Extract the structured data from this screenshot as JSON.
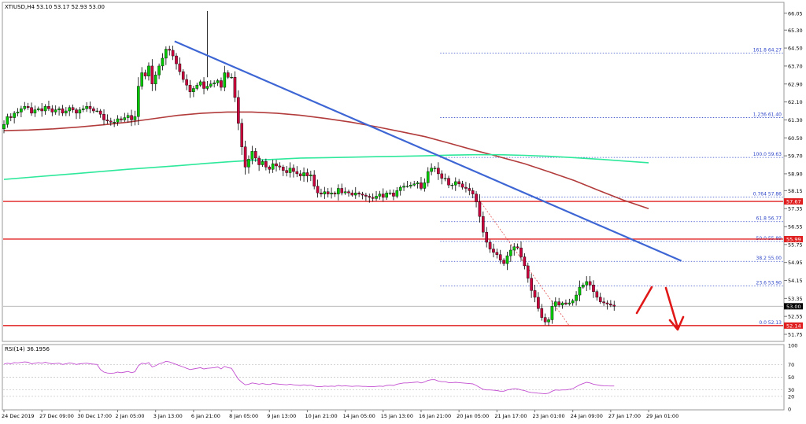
{
  "header": {
    "symbol_line": "XTIUSD,H4  53.10 53.17 52.93 53.00"
  },
  "rsi_panel": {
    "label": "RSI(14) 36.1956",
    "levels": [
      100,
      70,
      50,
      30,
      20,
      0
    ],
    "tick_labels": [
      "100",
      "70",
      "50",
      "30",
      "20",
      "0"
    ]
  },
  "colors": {
    "bull": "#00c800",
    "bear": "#c8003c",
    "trendline": "#3d66d4",
    "ma_slow": "#b23b3b",
    "ma_fast": "#2ee89b",
    "support": "#e02020",
    "fib": "#3048c8",
    "rsi": "#c24fd0",
    "arrow": "#e01818"
  },
  "chart_data": {
    "type": "candlestick",
    "y_ticks": [
      66.05,
      65.3,
      64.5,
      63.7,
      62.9,
      62.1,
      61.3,
      60.5,
      59.7,
      58.9,
      58.15,
      57.35,
      56.55,
      55.75,
      54.95,
      54.15,
      53.35,
      52.55,
      51.75
    ],
    "y_tick_labels": [
      "66.05",
      "65.30",
      "64.50",
      "63.70",
      "62.90",
      "62.10",
      "61.30",
      "60.50",
      "59.70",
      "58.90",
      "58.15",
      "57.35",
      "56.55",
      "55.75",
      "54.95",
      "54.15",
      "53.35",
      "52.55",
      "51.75"
    ],
    "ylim": [
      51.47,
      66.5
    ],
    "x_tick_labels": [
      "24 Dec 2019",
      "27 Dec 09:00",
      "30 Dec 17:00",
      "2 Jan 05:00",
      "3 Jan 13:00",
      "6 Jan 21:00",
      "8 Jan 05:00",
      "9 Jan 13:00",
      "10 Jan 21:00",
      "14 Jan 05:00",
      "15 Jan 13:00",
      "16 Jan 21:00",
      "20 Jan 05:00",
      "21 Jan 17:00",
      "23 Jan 01:00",
      "24 Jan 09:00",
      "27 Jan 17:00",
      "29 Jan 01:00"
    ],
    "x_tick_positions": [
      0,
      11,
      22,
      33,
      44,
      55,
      66,
      77,
      88,
      99,
      110,
      121,
      132,
      143,
      154,
      165,
      176,
      187
    ],
    "closes": [
      61.1,
      61.45,
      61.4,
      61.6,
      61.65,
      61.8,
      61.9,
      61.85,
      61.6,
      61.75,
      61.8,
      61.7,
      61.9,
      61.8,
      61.65,
      61.75,
      61.8,
      61.6,
      61.7,
      61.85,
      61.75,
      61.6,
      61.75,
      61.8,
      61.9,
      61.8,
      61.7,
      61.7,
      61.55,
      61.3,
      61.25,
      61.2,
      61.2,
      61.35,
      61.3,
      61.4,
      61.5,
      61.3,
      61.45,
      62.8,
      63.4,
      63.25,
      63.7,
      62.9,
      63.3,
      63.7,
      64.05,
      64.45,
      64.4,
      64.15,
      63.8,
      63.45,
      63.1,
      62.85,
      62.55,
      62.7,
      62.85,
      63.0,
      62.7,
      62.8,
      62.9,
      62.95,
      63.05,
      62.75,
      63.4,
      63.2,
      63.2,
      62.3,
      61.15,
      60.1,
      59.2,
      59.55,
      59.9,
      59.6,
      59.3,
      59.45,
      59.2,
      59.1,
      59.35,
      59.25,
      59.2,
      59.05,
      58.95,
      59.15,
      59.0,
      58.9,
      58.8,
      58.95,
      58.8,
      58.85,
      58.35,
      58.05,
      58.0,
      58.1,
      58.0,
      58.05,
      58.0,
      58.25,
      58.05,
      58.1,
      58.05,
      57.95,
      58.05,
      58.0,
      57.95,
      57.9,
      57.85,
      57.8,
      57.9,
      58.0,
      57.85,
      58.05,
      58.05,
      57.9,
      58.15,
      58.3,
      58.35,
      58.35,
      58.4,
      58.45,
      58.5,
      58.25,
      58.5,
      59.0,
      59.15,
      59.15,
      58.9,
      58.7,
      58.7,
      58.4,
      58.4,
      58.55,
      58.45,
      58.3,
      58.25,
      58.15,
      58.0,
      57.65,
      57.0,
      56.3,
      55.85,
      55.55,
      55.4,
      55.3,
      55.05,
      54.9,
      55.25,
      55.5,
      55.65,
      55.6,
      55.2,
      54.8,
      54.25,
      53.7,
      53.4,
      52.9,
      52.5,
      52.3,
      52.4,
      53.0,
      53.2,
      53.05,
      53.15,
      53.1,
      53.15,
      53.25,
      53.5,
      53.85,
      53.95,
      54.1,
      53.95,
      53.65,
      53.4,
      53.2,
      53.15,
      53.1,
      53.05,
      53.0
    ],
    "series": [
      {
        "name": "",
        "values": [
          60.82,
          60.85,
          60.9,
          60.98,
          61.08,
          61.2,
          61.35,
          61.5,
          61.6,
          61.65,
          61.65,
          61.6,
          61.5,
          61.36,
          61.2,
          61.0,
          60.78,
          60.55,
          60.25,
          59.94,
          59.65,
          59.35,
          58.98,
          58.6,
          58.15,
          57.72,
          57.35
        ]
      },
      {
        "name": "",
        "values": [
          58.65,
          58.74,
          58.83,
          58.92,
          59.01,
          59.1,
          59.18,
          59.26,
          59.35,
          59.43,
          59.5,
          59.55,
          59.6,
          59.62,
          59.64,
          59.66,
          59.68,
          59.7,
          59.73,
          59.75,
          59.75,
          59.72,
          59.68,
          59.62,
          59.55,
          59.47,
          59.39
        ]
      }
    ],
    "trendline": [
      [
        49.5,
        64.8
      ],
      [
        196.5,
        55.02
      ]
    ],
    "fib_retracement": {
      "levels": [
        {
          "label": "161.8  64.27",
          "value": 64.27
        },
        {
          "label": "1.236  61.40",
          "value": 61.4
        },
        {
          "label": "100.0  59.63",
          "value": 59.63
        },
        {
          "label": "0.764  57.86",
          "value": 57.86
        },
        {
          "label": "61.8  56.77",
          "value": 56.77
        },
        {
          "label": "50.0  55.89",
          "value": 55.89
        },
        {
          "label": "38.2  55.00",
          "value": 55.0
        },
        {
          "label": "23.6  53.90",
          "value": 53.9
        },
        {
          "label": "0.0  52.13",
          "value": 52.13
        }
      ],
      "from_index": 127,
      "diagonal": [
        [
          138,
          57.7
        ],
        [
          164,
          52.13
        ]
      ]
    },
    "horizontal_lines": [
      {
        "value": 57.67,
        "label": "57.67"
      },
      {
        "value": 55.99,
        "label": "55.99"
      },
      {
        "value": 52.14,
        "label": "52.14"
      }
    ],
    "current_price": {
      "value": 53.0,
      "label": "53.00"
    },
    "rsi_values": [
      70.5,
      72,
      71,
      73,
      72.5,
      73.2,
      74,
      73.5,
      71,
      72,
      73,
      72,
      73.5,
      72,
      71,
      71.5,
      72,
      70,
      71,
      72.5,
      71.5,
      70,
      71,
      71.5,
      72,
      71,
      70.5,
      70,
      62,
      58,
      56.5,
      56,
      56.5,
      58,
      57,
      58,
      59,
      57,
      58.5,
      68,
      72,
      71,
      73,
      66,
      68,
      71,
      72.5,
      75,
      74,
      72,
      70,
      68,
      66,
      64,
      62,
      63,
      64,
      65,
      63,
      64,
      64.5,
      65,
      66,
      63,
      67,
      65,
      64,
      55,
      47,
      42,
      38,
      39,
      41,
      40,
      39,
      40,
      39,
      38.5,
      40,
      39.5,
      39,
      38.5,
      38,
      39,
      38,
      37.5,
      37,
      38,
      37,
      37.5,
      36,
      35,
      35,
      36,
      35.5,
      36,
      35.5,
      37,
      36,
      36.5,
      36,
      35.5,
      36,
      36,
      35.5,
      35.5,
      35,
      35,
      35.5,
      36,
      35.5,
      37,
      37.5,
      37,
      39,
      40,
      41,
      41,
      41.5,
      42,
      42.5,
      41,
      42.5,
      45,
      46,
      46,
      44,
      43,
      43,
      41.5,
      41.5,
      42,
      41.5,
      41,
      40.5,
      40,
      39.5,
      37,
      34,
      31,
      30,
      30,
      29.5,
      29,
      28,
      28,
      30,
      31,
      32,
      31.5,
      30,
      29,
      27,
      26,
      25.5,
      25,
      24.5,
      24,
      25,
      28,
      30,
      29.5,
      30,
      30,
      31,
      32,
      35,
      38,
      40,
      42,
      41,
      39,
      38,
      37,
      36.5,
      36.3,
      36.2,
      36.2
    ]
  }
}
